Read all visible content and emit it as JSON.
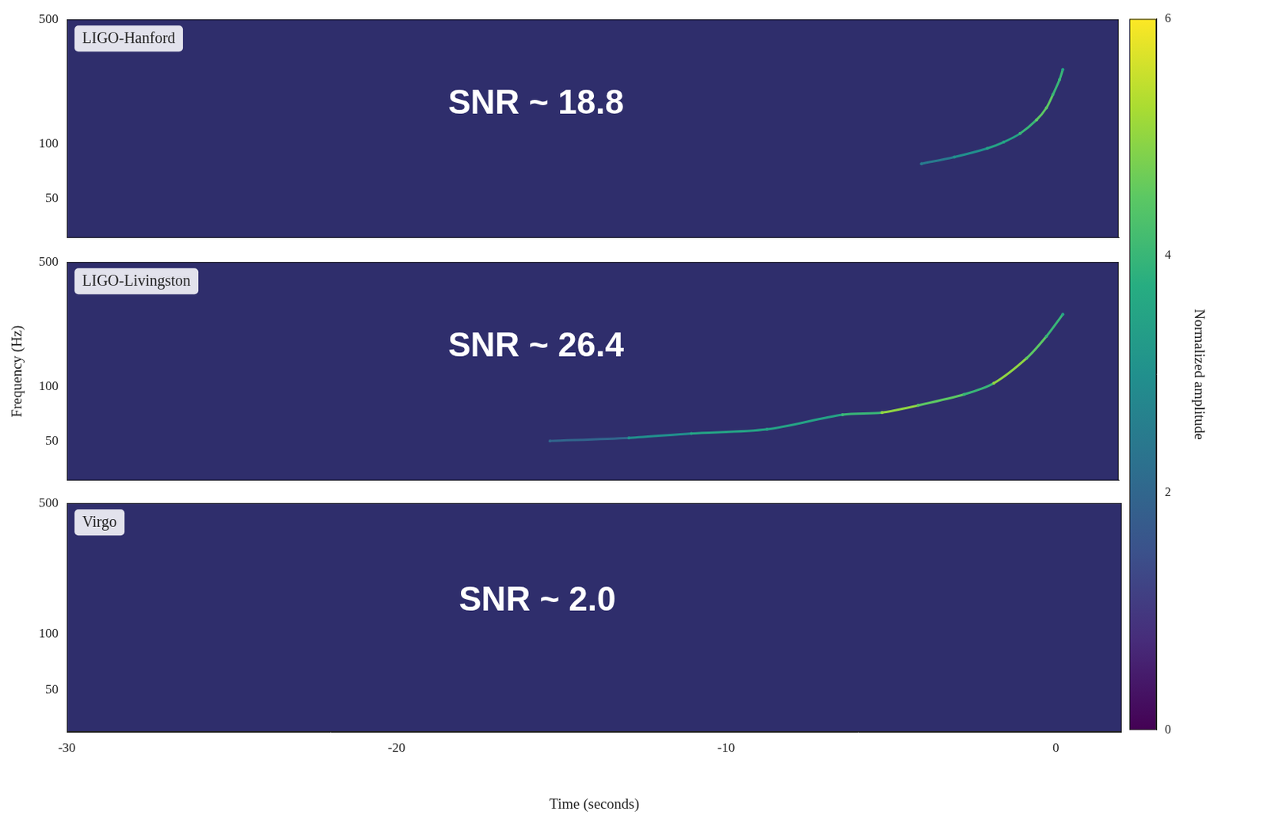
{
  "chart_data": [
    {
      "type": "line",
      "title": "LIGO-Hanford",
      "annotation": "SNR ~ 18.8",
      "x": [
        -4,
        -3,
        -2,
        -1.5,
        -1,
        -0.5,
        -0.2,
        0,
        0.2,
        0.3
      ],
      "values": [
        78,
        85,
        95,
        103,
        115,
        137,
        160,
        190,
        230,
        262
      ],
      "amplitude": [
        2.5,
        3,
        3.5,
        3.5,
        4,
        4.5,
        4.5,
        4,
        4,
        3.5
      ],
      "xlim": [
        -30,
        2
      ],
      "xticks": [
        -30,
        -20,
        -10,
        0
      ],
      "ylim": [
        30,
        500
      ],
      "yticks": [
        50,
        100,
        500
      ],
      "log": "y",
      "grid": false,
      "tick_labels": "y"
    },
    {
      "type": "line",
      "title": "LIGO-Livingston",
      "annotation": "SNR ~ 26.4",
      "x": [
        -15.3,
        -12.9,
        -11,
        -8.7,
        -6.4,
        -5.2,
        -4.1,
        -2.7,
        -1.8,
        -0.8,
        -0.2,
        0.3
      ],
      "values": [
        50,
        52,
        55,
        58,
        70,
        72,
        79,
        91,
        105,
        145,
        192,
        255
      ],
      "amplitude": [
        2,
        3,
        3.5,
        3.5,
        4,
        5,
        4.5,
        4,
        5,
        4.5,
        4,
        3.5
      ],
      "xlim": [
        -30,
        2
      ],
      "xticks": [
        -30,
        -20,
        -10,
        0
      ],
      "ylim": [
        30,
        500
      ],
      "yticks": [
        50,
        100,
        500
      ],
      "ylabel": "Frequency (Hz)",
      "log": "y",
      "grid": false,
      "tick_labels": "y"
    },
    {
      "type": "line",
      "title": "Virgo",
      "annotation": "SNR ~ 2.0",
      "x": [],
      "values": [],
      "amplitude": [],
      "xlim": [
        -30,
        2
      ],
      "xticks": [
        -30,
        -20,
        -10,
        0
      ],
      "ylim": [
        30,
        500
      ],
      "yticks": [
        50,
        100,
        500
      ],
      "xlabel": "Time (seconds)",
      "log": "y",
      "grid": false,
      "tick_labels": true
    }
  ],
  "colorbar": {
    "label": "Normalized amplitude",
    "range": [
      0,
      6
    ],
    "ticks": [
      0,
      2,
      4,
      6
    ]
  }
}
